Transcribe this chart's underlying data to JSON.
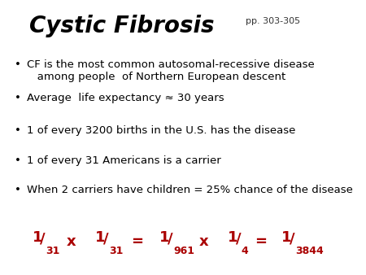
{
  "title": "Cystic Fibrosis",
  "subtitle": "pp. 303-305",
  "title_color": "#000000",
  "subtitle_color": "#333333",
  "red_color": "#aa0000",
  "bg_color": "#ffffff",
  "bullet_points": [
    "CF is the most common autosomal-recessive disease\n   among people  of Northern European descent",
    "Average  life expectancy ≈ 30 years",
    "1 of every 3200 births in the U.S. has the disease",
    "1 of every 31 Americans is a carrier",
    "When 2 carriers have children = 25% chance of the disease"
  ],
  "title_fontsize": 20,
  "subtitle_fontsize": 8,
  "bullet_fontsize": 9.5,
  "formula_num_fontsize": 13,
  "formula_den_fontsize": 9,
  "formula_op_fontsize": 13
}
